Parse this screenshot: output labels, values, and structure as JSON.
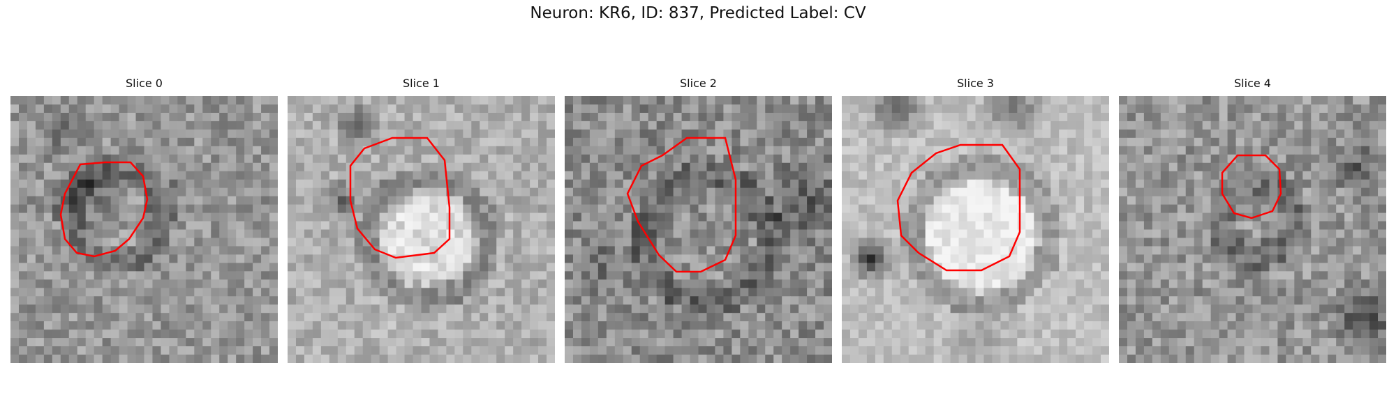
{
  "figure": {
    "title": "Neuron: KR6, ID: 837, Predicted Label: CV"
  },
  "panels": [
    {
      "label": "Slice 0"
    },
    {
      "label": "Slice 1"
    },
    {
      "label": "Slice 2"
    },
    {
      "label": "Slice 3"
    },
    {
      "label": "Slice 4"
    }
  ],
  "colors": {
    "contour": "#ff0000",
    "background": "#ffffff"
  }
}
